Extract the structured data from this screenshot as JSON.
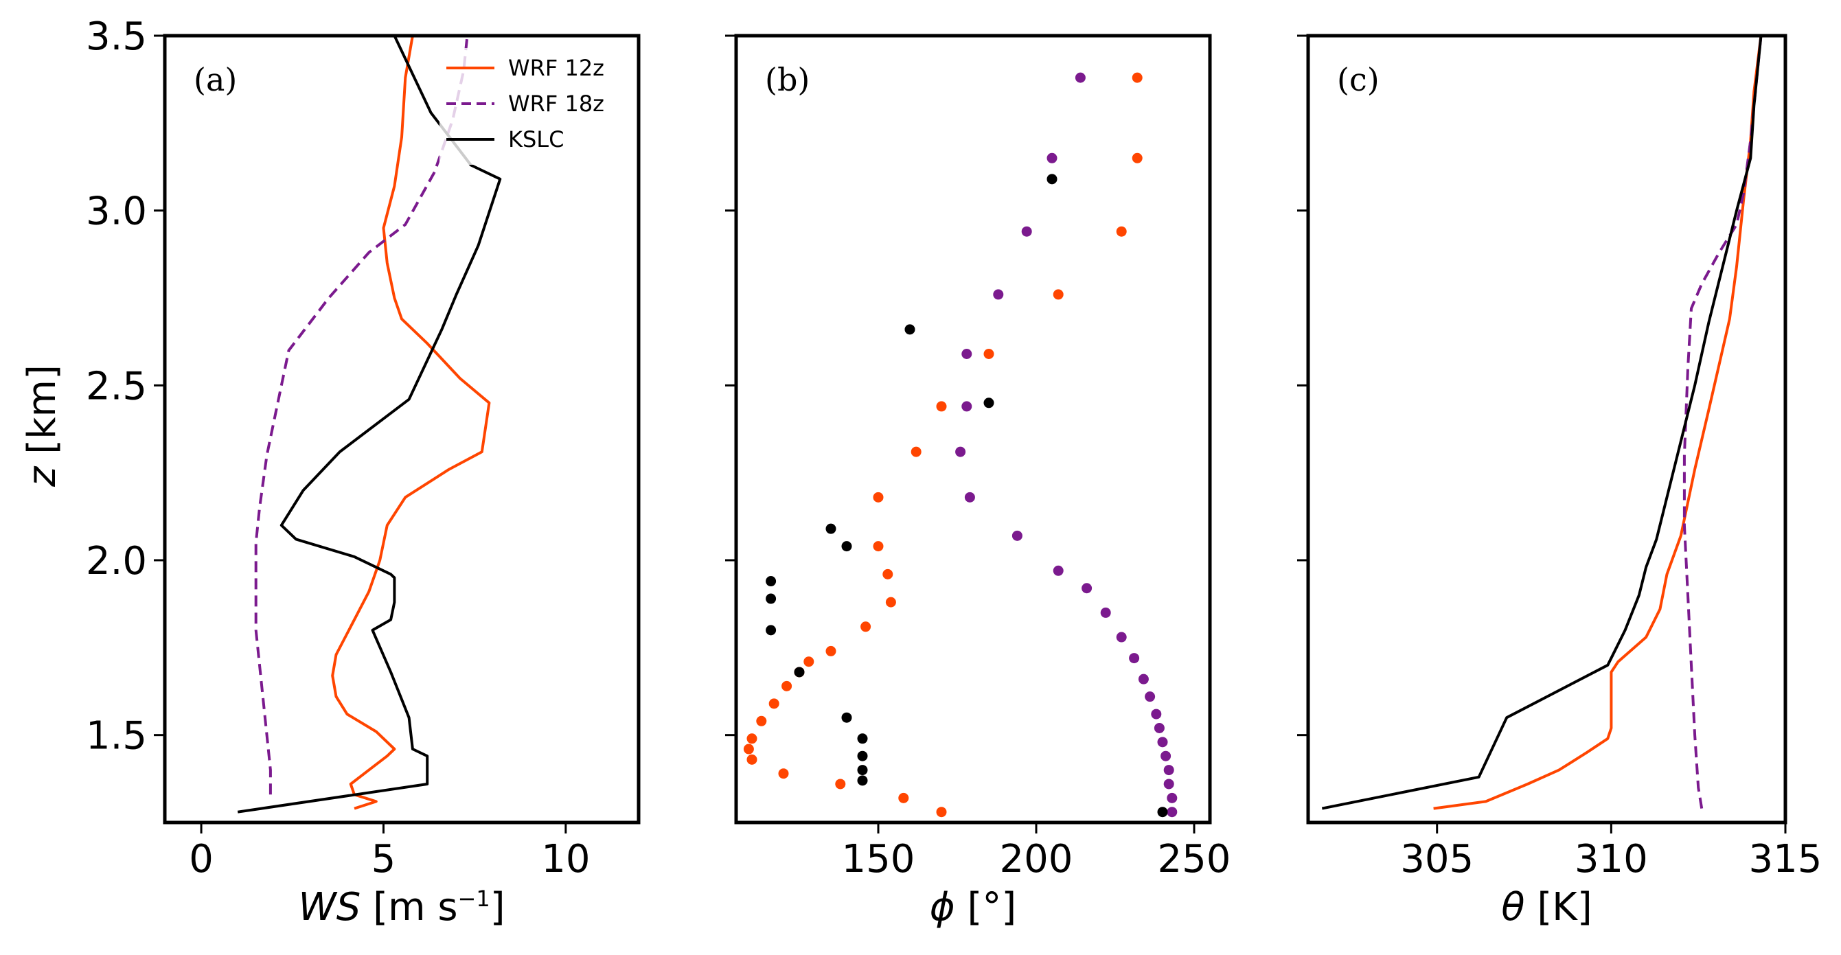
{
  "colors": {
    "wrf12": "#ff4500",
    "wrf18": "#7b1a8e",
    "kslc": "#000000"
  },
  "chart_data": [
    {
      "type": "line",
      "panel_label": "(a)",
      "xlabel_italic": "WS",
      "xlabel_unit": " [m s",
      "xlabel_sup": "−1",
      "xlabel_close": "]",
      "ylabel_italic": "z",
      "ylabel_rest": " [km]",
      "xlim": [
        -1,
        12
      ],
      "ylim": [
        1.25,
        3.5
      ],
      "xticks": [
        {
          "v": 0,
          "label": "0"
        },
        {
          "v": 5,
          "label": "5"
        },
        {
          "v": 10,
          "label": "10"
        }
      ],
      "yticks": [
        {
          "v": 1.5,
          "label": "1.5"
        },
        {
          "v": 2.0,
          "label": "2.0"
        },
        {
          "v": 2.5,
          "label": "2.5"
        },
        {
          "v": 3.0,
          "label": "3.0"
        },
        {
          "v": 3.5,
          "label": "3.5"
        }
      ],
      "legend": {
        "position": "top-right",
        "entries": [
          "WRF 12z",
          "WRF 18z",
          "KSLC"
        ]
      },
      "series": [
        {
          "name": "WRF 12z",
          "color_key": "wrf12",
          "dash": false,
          "points": [
            [
              4.2,
              1.29
            ],
            [
              4.8,
              1.31
            ],
            [
              4.2,
              1.33
            ],
            [
              4.1,
              1.36
            ],
            [
              4.6,
              1.4
            ],
            [
              5.1,
              1.44
            ],
            [
              5.3,
              1.46
            ],
            [
              4.8,
              1.51
            ],
            [
              4.0,
              1.56
            ],
            [
              3.7,
              1.61
            ],
            [
              3.6,
              1.67
            ],
            [
              3.7,
              1.73
            ],
            [
              4.0,
              1.79
            ],
            [
              4.3,
              1.85
            ],
            [
              4.6,
              1.91
            ],
            [
              4.9,
              2.0
            ],
            [
              5.1,
              2.1
            ],
            [
              5.6,
              2.18
            ],
            [
              6.8,
              2.26
            ],
            [
              7.7,
              2.31
            ],
            [
              7.9,
              2.45
            ],
            [
              7.1,
              2.52
            ],
            [
              6.2,
              2.62
            ],
            [
              5.5,
              2.69
            ],
            [
              5.3,
              2.75
            ],
            [
              5.1,
              2.85
            ],
            [
              5.0,
              2.95
            ],
            [
              5.3,
              3.07
            ],
            [
              5.5,
              3.21
            ],
            [
              5.6,
              3.38
            ],
            [
              5.8,
              3.5
            ]
          ]
        },
        {
          "name": "WRF 18z",
          "color_key": "wrf18",
          "dash": true,
          "points": [
            [
              1.9,
              1.33
            ],
            [
              1.9,
              1.4
            ],
            [
              1.8,
              1.5
            ],
            [
              1.7,
              1.6
            ],
            [
              1.6,
              1.7
            ],
            [
              1.5,
              1.8
            ],
            [
              1.5,
              1.9
            ],
            [
              1.5,
              2.05
            ],
            [
              1.6,
              2.15
            ],
            [
              1.8,
              2.3
            ],
            [
              2.1,
              2.45
            ],
            [
              2.4,
              2.6
            ],
            [
              3.5,
              2.75
            ],
            [
              4.6,
              2.88
            ],
            [
              5.6,
              2.96
            ],
            [
              6.4,
              3.11
            ],
            [
              6.9,
              3.26
            ],
            [
              7.2,
              3.4
            ],
            [
              7.3,
              3.5
            ]
          ]
        },
        {
          "name": "KSLC",
          "color_key": "kslc",
          "dash": false,
          "points": [
            [
              1.0,
              1.28
            ],
            [
              6.2,
              1.36
            ],
            [
              6.2,
              1.44
            ],
            [
              5.8,
              1.46
            ],
            [
              5.7,
              1.55
            ],
            [
              5.2,
              1.68
            ],
            [
              4.7,
              1.8
            ],
            [
              5.2,
              1.83
            ],
            [
              5.3,
              1.88
            ],
            [
              5.3,
              1.95
            ],
            [
              5.2,
              1.96
            ],
            [
              4.2,
              2.01
            ],
            [
              2.6,
              2.06
            ],
            [
              2.2,
              2.1
            ],
            [
              2.8,
              2.2
            ],
            [
              3.8,
              2.31
            ],
            [
              5.7,
              2.46
            ],
            [
              6.6,
              2.66
            ],
            [
              7.0,
              2.76
            ],
            [
              7.6,
              2.9
            ],
            [
              8.2,
              3.09
            ],
            [
              7.4,
              3.13
            ],
            [
              6.3,
              3.28
            ],
            [
              5.3,
              3.5
            ]
          ]
        }
      ]
    },
    {
      "type": "scatter",
      "panel_label": "(b)",
      "xlabel_italic": "ϕ",
      "xlabel_unit": " [°]",
      "xlim": [
        105,
        255
      ],
      "ylim": [
        1.25,
        3.5
      ],
      "xticks": [
        {
          "v": 150,
          "label": "150"
        },
        {
          "v": 200,
          "label": "200"
        },
        {
          "v": 250,
          "label": "250"
        }
      ],
      "yticks": [
        {
          "v": 1.5
        },
        {
          "v": 2.0
        },
        {
          "v": 2.5
        },
        {
          "v": 3.0
        },
        {
          "v": 3.5
        }
      ],
      "series": [
        {
          "name": "WRF 12z",
          "color_key": "wrf12",
          "points": [
            [
              170,
              1.28
            ],
            [
              158,
              1.32
            ],
            [
              138,
              1.36
            ],
            [
              120,
              1.39
            ],
            [
              110,
              1.43
            ],
            [
              109,
              1.46
            ],
            [
              110,
              1.49
            ],
            [
              113,
              1.54
            ],
            [
              117,
              1.59
            ],
            [
              121,
              1.64
            ],
            [
              125,
              1.68
            ],
            [
              128,
              1.71
            ],
            [
              135,
              1.74
            ],
            [
              146,
              1.81
            ],
            [
              154,
              1.88
            ],
            [
              153,
              1.96
            ],
            [
              150,
              2.04
            ],
            [
              150,
              2.18
            ],
            [
              162,
              2.31
            ],
            [
              170,
              2.44
            ],
            [
              185,
              2.59
            ],
            [
              207,
              2.76
            ],
            [
              227,
              2.94
            ],
            [
              232,
              3.15
            ],
            [
              232,
              3.38
            ]
          ]
        },
        {
          "name": "WRF 18z",
          "color_key": "wrf18",
          "points": [
            [
              243,
              1.28
            ],
            [
              243,
              1.32
            ],
            [
              242,
              1.36
            ],
            [
              242,
              1.4
            ],
            [
              241,
              1.44
            ],
            [
              240,
              1.48
            ],
            [
              239,
              1.52
            ],
            [
              238,
              1.56
            ],
            [
              236,
              1.61
            ],
            [
              234,
              1.66
            ],
            [
              231,
              1.72
            ],
            [
              227,
              1.78
            ],
            [
              222,
              1.85
            ],
            [
              216,
              1.92
            ],
            [
              207,
              1.97
            ],
            [
              194,
              2.07
            ],
            [
              179,
              2.18
            ],
            [
              176,
              2.31
            ],
            [
              178,
              2.44
            ],
            [
              178,
              2.59
            ],
            [
              188,
              2.76
            ],
            [
              197,
              2.94
            ],
            [
              205,
              3.15
            ],
            [
              214,
              3.38
            ]
          ]
        },
        {
          "name": "KSLC",
          "color_key": "kslc",
          "points": [
            [
              240,
              1.28
            ],
            [
              145,
              1.37
            ],
            [
              145,
              1.4
            ],
            [
              145,
              1.44
            ],
            [
              145,
              1.49
            ],
            [
              140,
              1.55
            ],
            [
              125,
              1.68
            ],
            [
              116,
              1.8
            ],
            [
              116,
              1.89
            ],
            [
              116,
              1.94
            ],
            [
              140,
              2.04
            ],
            [
              135,
              2.09
            ],
            [
              185,
              2.45
            ],
            [
              160,
              2.66
            ],
            [
              205,
              3.09
            ]
          ]
        }
      ]
    },
    {
      "type": "line",
      "panel_label": "(c)",
      "xlabel_italic": "θ",
      "xlabel_unit": " [K]",
      "xlim": [
        301.3,
        315
      ],
      "ylim": [
        1.25,
        3.5
      ],
      "xticks": [
        {
          "v": 305,
          "label": "305"
        },
        {
          "v": 310,
          "label": "310"
        },
        {
          "v": 315,
          "label": "315"
        }
      ],
      "yticks": [
        {
          "v": 1.5
        },
        {
          "v": 2.0
        },
        {
          "v": 2.5
        },
        {
          "v": 3.0
        },
        {
          "v": 3.5
        }
      ],
      "series": [
        {
          "name": "WRF 12z",
          "color_key": "wrf12",
          "dash": false,
          "points": [
            [
              304.9,
              1.29
            ],
            [
              306.4,
              1.31
            ],
            [
              307.6,
              1.36
            ],
            [
              308.5,
              1.4
            ],
            [
              309.3,
              1.45
            ],
            [
              309.9,
              1.49
            ],
            [
              310.0,
              1.52
            ],
            [
              310.0,
              1.62
            ],
            [
              310.0,
              1.68
            ],
            [
              310.2,
              1.71
            ],
            [
              311.0,
              1.78
            ],
            [
              311.4,
              1.86
            ],
            [
              311.6,
              1.96
            ],
            [
              312.0,
              2.07
            ],
            [
              312.4,
              2.26
            ],
            [
              312.8,
              2.43
            ],
            [
              313.1,
              2.56
            ],
            [
              313.4,
              2.69
            ],
            [
              313.6,
              2.84
            ],
            [
              313.8,
              3.03
            ],
            [
              314.0,
              3.2
            ],
            [
              314.1,
              3.34
            ],
            [
              314.3,
              3.5
            ]
          ]
        },
        {
          "name": "WRF 18z",
          "color_key": "wrf18",
          "dash": true,
          "points": [
            [
              312.6,
              1.29
            ],
            [
              312.5,
              1.35
            ],
            [
              312.4,
              1.5
            ],
            [
              312.3,
              1.7
            ],
            [
              312.2,
              1.9
            ],
            [
              312.1,
              2.1
            ],
            [
              312.1,
              2.3
            ],
            [
              312.2,
              2.55
            ],
            [
              312.3,
              2.72
            ],
            [
              312.6,
              2.79
            ],
            [
              313.1,
              2.88
            ],
            [
              313.6,
              2.96
            ],
            [
              313.8,
              3.05
            ],
            [
              314.0,
              3.2
            ],
            [
              314.2,
              3.4
            ],
            [
              314.3,
              3.5
            ]
          ]
        },
        {
          "name": "KSLC",
          "color_key": "kslc",
          "dash": false,
          "points": [
            [
              301.7,
              1.29
            ],
            [
              306.2,
              1.38
            ],
            [
              307.0,
              1.55
            ],
            [
              309.9,
              1.7
            ],
            [
              310.4,
              1.8
            ],
            [
              310.8,
              1.9
            ],
            [
              311.0,
              1.98
            ],
            [
              311.3,
              2.06
            ],
            [
              311.6,
              2.18
            ],
            [
              312.0,
              2.34
            ],
            [
              312.4,
              2.5
            ],
            [
              312.8,
              2.68
            ],
            [
              313.2,
              2.84
            ],
            [
              313.6,
              3.0
            ],
            [
              314.0,
              3.15
            ],
            [
              314.1,
              3.3
            ],
            [
              314.3,
              3.5
            ]
          ]
        }
      ]
    }
  ]
}
